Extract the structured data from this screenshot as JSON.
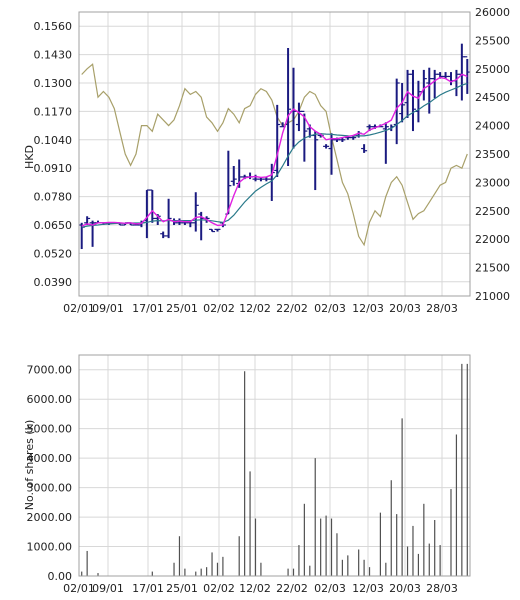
{
  "chart_data": [
    {
      "type": "ohlc",
      "ylabel": "HKD",
      "y_ticks": [
        "0.1560",
        "0.1430",
        "0.1300",
        "0.1170",
        "0.1040",
        "0.0910",
        "0.0780",
        "0.0650",
        "0.0520",
        "0.0390"
      ],
      "ylim": [
        0.0325,
        0.1625
      ],
      "y2_ticks": [
        "26000",
        "25500",
        "25000",
        "24500",
        "24000",
        "23500",
        "23000",
        "22500",
        "22000",
        "21500",
        "21000"
      ],
      "y2lim": [
        21000,
        26000
      ],
      "x_ticks": [
        "02/01",
        "09/01",
        "17/01",
        "25/01",
        "02/02",
        "12/02",
        "22/02",
        "02/03",
        "12/03",
        "20/03",
        "28/03"
      ],
      "grid": true,
      "colors": {
        "bars": "#1a1a80",
        "ma_short": "#e020e0",
        "ma_long": "#2a7a8a",
        "index": "#a8a06a",
        "grid": "#d8d8d8",
        "frame": "#a0a0a0"
      },
      "series": [
        {
          "name": "",
          "kind": "ohlc",
          "values": [
            [
              0.065,
              0.066,
              0.054,
              0.064
            ],
            [
              0.066,
              0.069,
              0.065,
              0.068
            ],
            [
              0.066,
              0.067,
              0.055,
              0.066
            ],
            [
              0.066,
              0.067,
              0.066,
              0.066
            ],
            [
              0.066,
              0.066,
              0.065,
              0.066
            ],
            [
              0.066,
              0.066,
              0.065,
              0.066
            ],
            [
              0.066,
              0.066,
              0.066,
              0.066
            ],
            [
              0.066,
              0.066,
              0.065,
              0.065
            ],
            [
              0.065,
              0.066,
              0.065,
              0.066
            ],
            [
              0.066,
              0.066,
              0.065,
              0.065
            ],
            [
              0.065,
              0.066,
              0.065,
              0.065
            ],
            [
              0.065,
              0.067,
              0.064,
              0.066
            ],
            [
              0.067,
              0.081,
              0.059,
              0.081
            ],
            [
              0.081,
              0.081,
              0.066,
              0.068
            ],
            [
              0.068,
              0.07,
              0.065,
              0.069
            ],
            [
              0.061,
              0.062,
              0.059,
              0.06
            ],
            [
              0.06,
              0.077,
              0.059,
              0.068
            ],
            [
              0.067,
              0.068,
              0.065,
              0.066
            ],
            [
              0.066,
              0.068,
              0.065,
              0.066
            ],
            [
              0.066,
              0.067,
              0.065,
              0.066
            ],
            [
              0.066,
              0.067,
              0.064,
              0.066
            ],
            [
              0.066,
              0.08,
              0.062,
              0.074
            ],
            [
              0.07,
              0.071,
              0.058,
              0.068
            ],
            [
              0.068,
              0.069,
              0.066,
              0.068
            ],
            [
              0.063,
              0.063,
              0.062,
              0.062
            ],
            [
              0.063,
              0.063,
              0.062,
              0.063
            ],
            [
              0.066,
              0.066,
              0.064,
              0.065
            ],
            [
              0.07,
              0.099,
              0.07,
              0.083
            ],
            [
              0.085,
              0.092,
              0.083,
              0.086
            ],
            [
              0.084,
              0.095,
              0.082,
              0.087
            ],
            [
              0.087,
              0.088,
              0.086,
              0.087
            ],
            [
              0.087,
              0.089,
              0.086,
              0.087
            ],
            [
              0.086,
              0.088,
              0.085,
              0.086
            ],
            [
              0.086,
              0.087,
              0.085,
              0.086
            ],
            [
              0.086,
              0.087,
              0.085,
              0.086
            ],
            [
              0.086,
              0.093,
              0.076,
              0.089
            ],
            [
              0.09,
              0.12,
              0.087,
              0.111
            ],
            [
              0.11,
              0.112,
              0.11,
              0.11
            ],
            [
              0.111,
              0.146,
              0.092,
              0.118
            ],
            [
              0.117,
              0.137,
              0.1,
              0.117
            ],
            [
              0.111,
              0.121,
              0.108,
              0.117
            ],
            [
              0.117,
              0.116,
              0.094,
              0.108
            ],
            [
              0.109,
              0.111,
              0.105,
              0.106
            ],
            [
              0.106,
              0.108,
              0.081,
              0.104
            ],
            [
              0.106,
              0.107,
              0.105,
              0.106
            ],
            [
              0.101,
              0.102,
              0.1,
              0.101
            ],
            [
              0.1,
              0.107,
              0.088,
              0.104
            ],
            [
              0.104,
              0.105,
              0.103,
              0.104
            ],
            [
              0.104,
              0.105,
              0.103,
              0.104
            ],
            [
              0.105,
              0.106,
              0.104,
              0.105
            ],
            [
              0.105,
              0.106,
              0.104,
              0.105
            ],
            [
              0.106,
              0.108,
              0.105,
              0.107
            ],
            [
              0.1,
              0.102,
              0.098,
              0.099
            ],
            [
              0.11,
              0.111,
              0.108,
              0.11
            ],
            [
              0.11,
              0.111,
              0.109,
              0.11
            ],
            [
              0.11,
              0.111,
              0.11,
              0.11
            ],
            [
              0.109,
              0.112,
              0.093,
              0.11
            ],
            [
              0.109,
              0.111,
              0.108,
              0.11
            ],
            [
              0.111,
              0.132,
              0.102,
              0.13
            ],
            [
              0.116,
              0.13,
              0.112,
              0.12
            ],
            [
              0.121,
              0.136,
              0.114,
              0.134
            ],
            [
              0.134,
              0.136,
              0.108,
              0.118
            ],
            [
              0.117,
              0.131,
              0.112,
              0.126
            ],
            [
              0.126,
              0.136,
              0.122,
              0.132
            ],
            [
              0.13,
              0.137,
              0.116,
              0.132
            ],
            [
              0.132,
              0.136,
              0.123,
              0.134
            ],
            [
              0.134,
              0.135,
              0.132,
              0.133
            ],
            [
              0.133,
              0.135,
              0.132,
              0.133
            ],
            [
              0.133,
              0.135,
              0.129,
              0.131
            ],
            [
              0.131,
              0.136,
              0.124,
              0.134
            ],
            [
              0.134,
              0.148,
              0.122,
              0.142
            ],
            [
              0.142,
              0.141,
              0.125,
              0.135
            ]
          ]
        },
        {
          "name": "",
          "kind": "line",
          "axis": "left",
          "values": [
            0.0645,
            0.0655,
            0.065,
            0.066,
            0.066,
            0.0662,
            0.0662,
            0.066,
            0.0658,
            0.066,
            0.0655,
            0.0658,
            0.0685,
            0.0715,
            0.069,
            0.0665,
            0.0675,
            0.0665,
            0.0668,
            0.0665,
            0.0665,
            0.0685,
            0.0688,
            0.0675,
            0.066,
            0.0648,
            0.065,
            0.0715,
            0.0785,
            0.0845,
            0.0865,
            0.087,
            0.0872,
            0.0868,
            0.087,
            0.088,
            0.097,
            0.107,
            0.115,
            0.118,
            0.1165,
            0.1145,
            0.11,
            0.108,
            0.1065,
            0.104,
            0.1045,
            0.1045,
            0.105,
            0.1055,
            0.106,
            0.107,
            0.1065,
            0.1085,
            0.1095,
            0.1105,
            0.1115,
            0.113,
            0.1185,
            0.121,
            0.126,
            0.124,
            0.123,
            0.1275,
            0.129,
            0.131,
            0.1325,
            0.132,
            0.1305,
            0.1315,
            0.134,
            0.133
          ]
        },
        {
          "name": "",
          "kind": "line",
          "axis": "left",
          "values": [
            0.064,
            0.0645,
            0.0648,
            0.065,
            0.0653,
            0.0655,
            0.0657,
            0.0658,
            0.0658,
            0.0659,
            0.0659,
            0.0659,
            0.0662,
            0.0668,
            0.067,
            0.0669,
            0.067,
            0.067,
            0.067,
            0.067,
            0.067,
            0.0672,
            0.0674,
            0.0672,
            0.0669,
            0.0665,
            0.0662,
            0.0672,
            0.0695,
            0.0725,
            0.0755,
            0.078,
            0.0805,
            0.0822,
            0.0838,
            0.0852,
            0.088,
            0.092,
            0.0965,
            0.1005,
            0.103,
            0.1048,
            0.1058,
            0.1065,
            0.1068,
            0.1066,
            0.1065,
            0.1062,
            0.106,
            0.1058,
            0.1057,
            0.1058,
            0.1058,
            0.1062,
            0.1068,
            0.1075,
            0.1083,
            0.1092,
            0.111,
            0.1128,
            0.115,
            0.1165,
            0.1178,
            0.1195,
            0.121,
            0.1228,
            0.1245,
            0.1258,
            0.1268,
            0.1278,
            0.129,
            0.1298
          ]
        },
        {
          "name": "",
          "kind": "line",
          "axis": "right",
          "values": [
            24900,
            25000,
            25080,
            24500,
            24600,
            24500,
            24300,
            23900,
            23500,
            23300,
            23500,
            24000,
            24000,
            23900,
            24200,
            24100,
            24000,
            24100,
            24350,
            24650,
            24550,
            24600,
            24500,
            24150,
            24050,
            23900,
            24050,
            24300,
            24200,
            24050,
            24300,
            24350,
            24550,
            24650,
            24600,
            24450,
            24150,
            24000,
            24050,
            24100,
            24250,
            24500,
            24600,
            24550,
            24350,
            24250,
            23800,
            23400,
            23000,
            22800,
            22450,
            22050,
            21900,
            22300,
            22500,
            22400,
            22750,
            23000,
            23100,
            22950,
            22650,
            22350,
            22450,
            22500,
            22650,
            22800,
            22950,
            23000,
            23250,
            23300,
            23250,
            23500
          ]
        }
      ]
    },
    {
      "type": "bar",
      "ylabel": "No. of shares (k)",
      "y_ticks": [
        "7000.00",
        "6000.00",
        "5000.00",
        "4000.00",
        "3000.00",
        "2000.00",
        "1000.00",
        "0.00"
      ],
      "ylim": [
        0,
        7500
      ],
      "x_ticks": [
        "02/01",
        "09/01",
        "17/01",
        "25/01",
        "02/02",
        "12/02",
        "22/02",
        "02/03",
        "12/03",
        "20/03",
        "28/03"
      ],
      "grid": true,
      "colors": {
        "bars": "#505050",
        "grid": "#d8d8d8",
        "frame": "#a0a0a0"
      },
      "values": [
        150,
        850,
        0,
        100,
        0,
        0,
        0,
        0,
        0,
        0,
        0,
        0,
        0,
        150,
        0,
        0,
        0,
        450,
        1350,
        250,
        0,
        150,
        250,
        300,
        800,
        450,
        650,
        0,
        0,
        1350,
        6950,
        3550,
        1950,
        450,
        0,
        0,
        0,
        0,
        250,
        250,
        1050,
        2450,
        350,
        4000,
        1950,
        2050,
        1950,
        1450,
        550,
        700,
        0,
        900,
        550,
        300,
        0,
        2150,
        450,
        3250,
        2100,
        5350,
        1000,
        1700,
        750,
        2450,
        1100,
        1900,
        1050,
        0,
        2950,
        4800,
        7200,
        7200
      ]
    }
  ]
}
